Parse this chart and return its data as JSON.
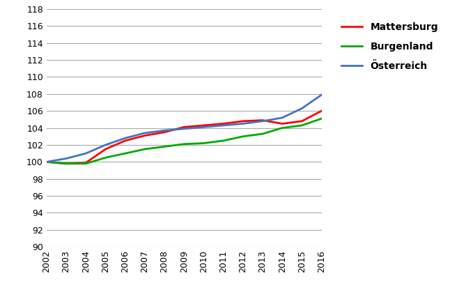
{
  "years": [
    2002,
    2003,
    2004,
    2005,
    2006,
    2007,
    2008,
    2009,
    2010,
    2011,
    2012,
    2013,
    2014,
    2015,
    2016
  ],
  "mattersburg": [
    100.0,
    99.8,
    99.9,
    101.5,
    102.5,
    103.1,
    103.5,
    104.1,
    104.3,
    104.5,
    104.8,
    104.9,
    104.5,
    104.8,
    106.0
  ],
  "burgenland": [
    100.0,
    99.8,
    99.8,
    100.5,
    101.0,
    101.5,
    101.8,
    102.1,
    102.2,
    102.5,
    103.0,
    103.3,
    104.0,
    104.3,
    105.1
  ],
  "oesterreich": [
    100.0,
    100.4,
    101.0,
    102.0,
    102.8,
    103.4,
    103.7,
    103.9,
    104.1,
    104.3,
    104.5,
    104.8,
    105.2,
    106.3,
    107.9
  ],
  "mattersburg_color": "#FF0000",
  "burgenland_color": "#00AA00",
  "oesterreich_color": "#4472C4",
  "line_width": 2.0,
  "ylim": [
    90,
    118
  ],
  "yticks": [
    90,
    92,
    94,
    96,
    98,
    100,
    102,
    104,
    106,
    108,
    110,
    112,
    114,
    116,
    118
  ],
  "grid_color": "#AAAAAA",
  "grid_linewidth": 0.8,
  "bg_color": "#FFFFFF",
  "legend_labels": [
    "Mattersburg",
    "Burgenland",
    "Österreich"
  ],
  "legend_fontsize": 10,
  "tick_fontsize": 9,
  "ytick_fontsize": 9
}
